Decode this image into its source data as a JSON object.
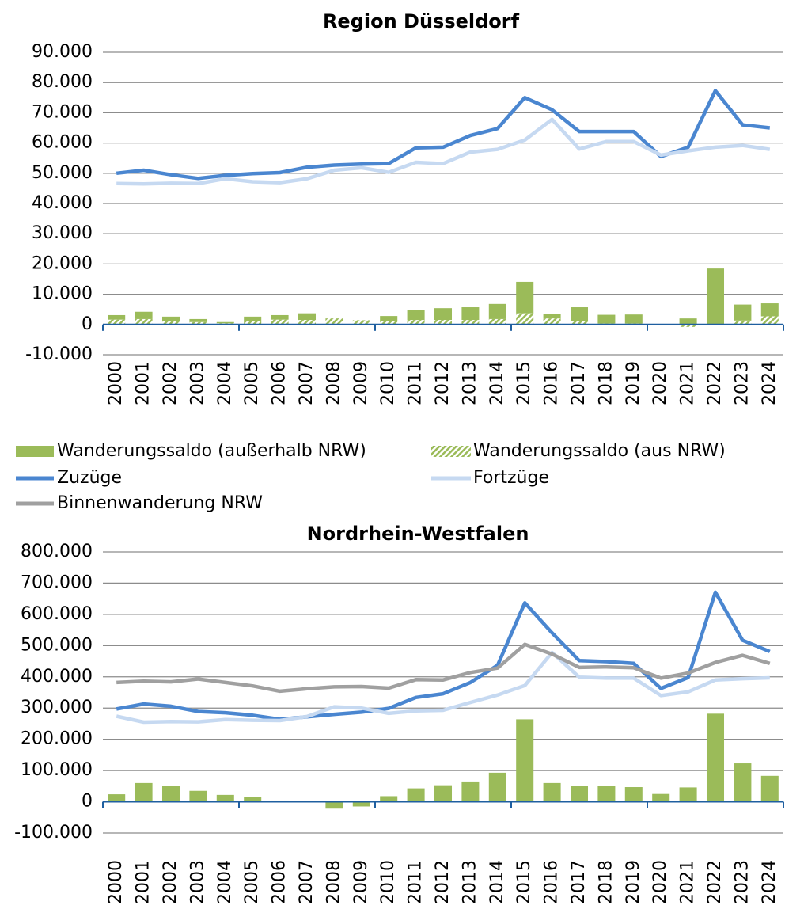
{
  "chart_data": [
    {
      "type": "combo",
      "title": "Region Düsseldorf",
      "stacked": true,
      "categories": [
        "2000",
        "2001",
        "2002",
        "2003",
        "2004",
        "2005",
        "2006",
        "2007",
        "2008",
        "2009",
        "2010",
        "2011",
        "2012",
        "2013",
        "2014",
        "2015",
        "2016",
        "2017",
        "2018",
        "2019",
        "2020",
        "2021",
        "2022",
        "2023",
        "2024"
      ],
      "ylim": [
        -10000,
        90000
      ],
      "yticks": [
        {
          "value": -10000,
          "label": "-10.000"
        },
        0,
        {
          "value": 10000,
          "label": "10.000"
        },
        {
          "value": 20000,
          "label": "20.000"
        },
        {
          "value": 30000,
          "label": "30.000"
        },
        {
          "value": 40000,
          "label": "40.000"
        },
        {
          "value": 50000,
          "label": "50.000"
        },
        {
          "value": 60000,
          "label": "60.000"
        },
        {
          "value": 70000,
          "label": "70.000"
        },
        {
          "value": 80000,
          "label": "80.000"
        },
        {
          "value": 90000,
          "label": "90.000"
        }
      ],
      "grid": true,
      "series": [
        {
          "name": "Wanderungssaldo (außerhalb NRW)",
          "type": "bar",
          "color": "#9bbb59",
          "values": [
            1500,
            2400,
            1600,
            1000,
            400,
            1600,
            1500,
            2200,
            0,
            0,
            1700,
            3200,
            3900,
            4200,
            5000,
            10400,
            1400,
            4500,
            2900,
            3000,
            0,
            2000,
            18500,
            5300,
            4300
          ]
        },
        {
          "name": "Wanderungssaldo (aus NRW)",
          "type": "bar",
          "pattern": "hatch",
          "color": "#9bbb59",
          "values": [
            1600,
            1800,
            1000,
            800,
            400,
            1000,
            1600,
            1500,
            2000,
            1400,
            1100,
            1500,
            1500,
            1500,
            1800,
            3700,
            2000,
            1200,
            300,
            300,
            -300,
            -800,
            0,
            1300,
            2700
          ]
        },
        {
          "name": "Zuzüge",
          "type": "line",
          "color": "#4a86d0",
          "values": [
            50000,
            51000,
            49500,
            48300,
            49300,
            49900,
            50200,
            52000,
            52700,
            53000,
            53200,
            58400,
            58600,
            62500,
            64800,
            75000,
            71000,
            63800,
            63800,
            63800,
            55500,
            58600,
            77300,
            66000,
            65000
          ]
        },
        {
          "name": "Fortzüge",
          "type": "line",
          "color": "#c6d9f1",
          "values": [
            46600,
            46500,
            46700,
            46600,
            48200,
            47200,
            46900,
            48200,
            51000,
            51800,
            50300,
            53600,
            53200,
            57000,
            57900,
            61000,
            67800,
            58000,
            60500,
            60500,
            56000,
            57400,
            58600,
            59200,
            57900
          ]
        }
      ]
    },
    {
      "type": "combo",
      "title": "Nordrhein-Westfalen",
      "categories": [
        "2000",
        "2001",
        "2002",
        "2003",
        "2004",
        "2005",
        "2006",
        "2007",
        "2008",
        "2009",
        "2010",
        "2011",
        "2012",
        "2013",
        "2014",
        "2015",
        "2016",
        "2017",
        "2018",
        "2019",
        "2020",
        "2021",
        "2022",
        "2023",
        "2024"
      ],
      "ylim": [
        -100000,
        800000
      ],
      "yticks": [
        {
          "value": -100000,
          "label": "-100.000"
        },
        0,
        {
          "value": 100000,
          "label": "100.000"
        },
        {
          "value": 200000,
          "label": "200.000"
        },
        {
          "value": 300000,
          "label": "300.000"
        },
        {
          "value": 400000,
          "label": "400.000"
        },
        {
          "value": 500000,
          "label": "500.000"
        },
        {
          "value": 600000,
          "label": "600.000"
        },
        {
          "value": 700000,
          "label": "700.000"
        },
        {
          "value": 800000,
          "label": "800.000"
        }
      ],
      "grid": true,
      "series": [
        {
          "name": "Wanderungssaldo (außerhalb NRW)",
          "type": "bar",
          "color": "#9bbb59",
          "values": [
            24000,
            60000,
            50000,
            35000,
            22000,
            16000,
            4000,
            1000,
            -22000,
            -15000,
            18000,
            43000,
            53000,
            65000,
            93000,
            264000,
            60000,
            52000,
            52000,
            47000,
            25000,
            46000,
            282000,
            123000,
            83000
          ]
        },
        {
          "name": "Zuzüge",
          "type": "line",
          "color": "#4a86d0",
          "values": [
            297000,
            313000,
            306000,
            289000,
            285000,
            277000,
            264000,
            272000,
            280000,
            287000,
            299000,
            334000,
            346000,
            382000,
            437000,
            637000,
            541000,
            452000,
            449000,
            443000,
            363000,
            398000,
            671000,
            517000,
            481000
          ]
        },
        {
          "name": "Fortzüge",
          "type": "line",
          "color": "#c6d9f1",
          "values": [
            274000,
            255000,
            257000,
            256000,
            263000,
            261000,
            260000,
            273000,
            304000,
            300000,
            283000,
            291000,
            293000,
            318000,
            342000,
            372000,
            478000,
            399000,
            396000,
            396000,
            340000,
            352000,
            390000,
            394000,
            397000
          ]
        },
        {
          "name": "Binnenwanderung NRW",
          "type": "line",
          "color": "#a0a0a0",
          "values": [
            382000,
            386000,
            384000,
            393000,
            382000,
            371000,
            354000,
            362000,
            368000,
            369000,
            364000,
            391000,
            390000,
            414000,
            428000,
            504000,
            473000,
            430000,
            432000,
            429000,
            396000,
            412000,
            446000,
            469000,
            443000
          ]
        }
      ]
    }
  ]
}
